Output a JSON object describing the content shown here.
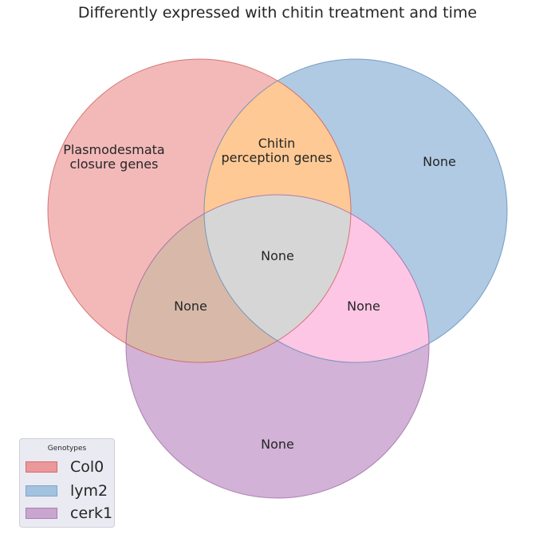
{
  "diagram": {
    "title": "Differently expressed with chitin treatment and time",
    "sets": [
      {
        "name": "Col0",
        "fill": "#ea7f80",
        "stroke": "#cc4c4c"
      },
      {
        "name": "lym2",
        "fill": "#6f9fcc",
        "stroke": "#4e81b4"
      },
      {
        "name": "cerk1",
        "fill": "#ad72b6",
        "stroke": "#955a9d"
      }
    ],
    "regions": {
      "col0_only": [
        "Plasmodesmata",
        "closure genes"
      ],
      "lym2_only": [
        "None"
      ],
      "cerk1_only": [
        "None"
      ],
      "col0_lym2": [
        "Chitin",
        "perception genes"
      ],
      "col0_cerk1": [
        "None"
      ],
      "lym2_cerk1": [
        "None"
      ],
      "all_three": [
        "None"
      ]
    },
    "region_colors": {
      "col0_lym2": "#fec995",
      "lym2_cerk1": "#fdc6e4",
      "col0_cerk1": "#d8b9a9",
      "all_three": "#d6d6d6"
    }
  },
  "legend": {
    "title": "Genotypes",
    "items": [
      {
        "label": "Col0",
        "color": "#ea9899",
        "border": "#d96a6b"
      },
      {
        "label": "lym2",
        "color": "#a3c2df",
        "border": "#7fa6cc"
      },
      {
        "label": "cerk1",
        "color": "#c9a6d0",
        "border": "#a97fb2"
      }
    ]
  }
}
